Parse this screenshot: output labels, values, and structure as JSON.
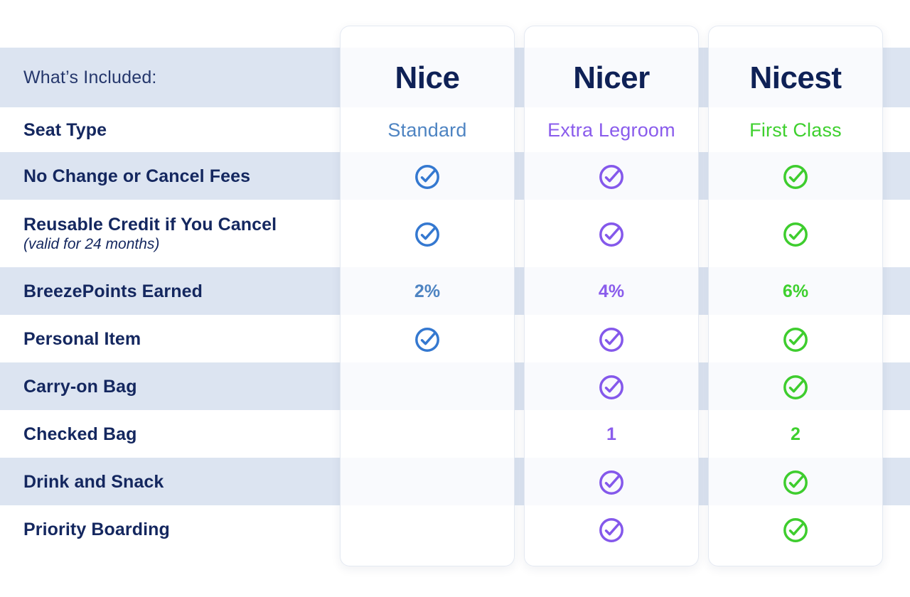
{
  "header": {
    "included_label": "What’s Included:"
  },
  "plans": [
    {
      "name": "Nice",
      "seat_type": "Standard",
      "accent_color": "#4e84c2",
      "check_color": "#3478d0"
    },
    {
      "name": "Nicer",
      "seat_type": "Extra Legroom",
      "accent_color": "#8a5cec",
      "check_color": "#8458eb"
    },
    {
      "name": "Nicest",
      "seat_type": "First Class",
      "accent_color": "#3ed02e",
      "check_color": "#3ecd2e"
    }
  ],
  "rows": [
    {
      "label": "Seat Type",
      "cells": [
        "Standard",
        "Extra Legroom",
        "First Class"
      ]
    },
    {
      "label": "No Change or Cancel Fees",
      "cells": [
        "check",
        "check",
        "check"
      ]
    },
    {
      "label": "Reusable Credit if You Cancel",
      "sublabel": "(valid for 24 months)",
      "cells": [
        "check",
        "check",
        "check"
      ]
    },
    {
      "label": "BreezePoints Earned",
      "cells": [
        "2%",
        "4%",
        "6%"
      ]
    },
    {
      "label": "Personal Item",
      "cells": [
        "check",
        "check",
        "check"
      ]
    },
    {
      "label": "Carry-on Bag",
      "cells": [
        "",
        "check",
        "check"
      ]
    },
    {
      "label": "Checked Bag",
      "cells": [
        "",
        "1",
        "2"
      ]
    },
    {
      "label": "Drink and Snack",
      "cells": [
        "",
        "check",
        "check"
      ]
    },
    {
      "label": "Priority Boarding",
      "cells": [
        "",
        "check",
        "check"
      ]
    }
  ],
  "colors": {
    "band_stripe": "#dce4f1",
    "navy_text": "#14275f",
    "title_navy": "#0f2156"
  },
  "chart_data": {
    "type": "table",
    "columns": [
      "What’s Included:",
      "Nice",
      "Nicer",
      "Nicest"
    ],
    "rows": [
      [
        "Seat Type",
        "Standard",
        "Extra Legroom",
        "First Class"
      ],
      [
        "No Change or Cancel Fees",
        "✓",
        "✓",
        "✓"
      ],
      [
        "Reusable Credit if You Cancel (valid for 24 months)",
        "✓",
        "✓",
        "✓"
      ],
      [
        "BreezePoints Earned",
        "2%",
        "4%",
        "6%"
      ],
      [
        "Personal Item",
        "✓",
        "✓",
        "✓"
      ],
      [
        "Carry-on Bag",
        "",
        "✓",
        "✓"
      ],
      [
        "Checked Bag",
        "",
        "1",
        "2"
      ],
      [
        "Drink and Snack",
        "",
        "✓",
        "✓"
      ],
      [
        "Priority Boarding",
        "",
        "✓",
        "✓"
      ]
    ]
  }
}
